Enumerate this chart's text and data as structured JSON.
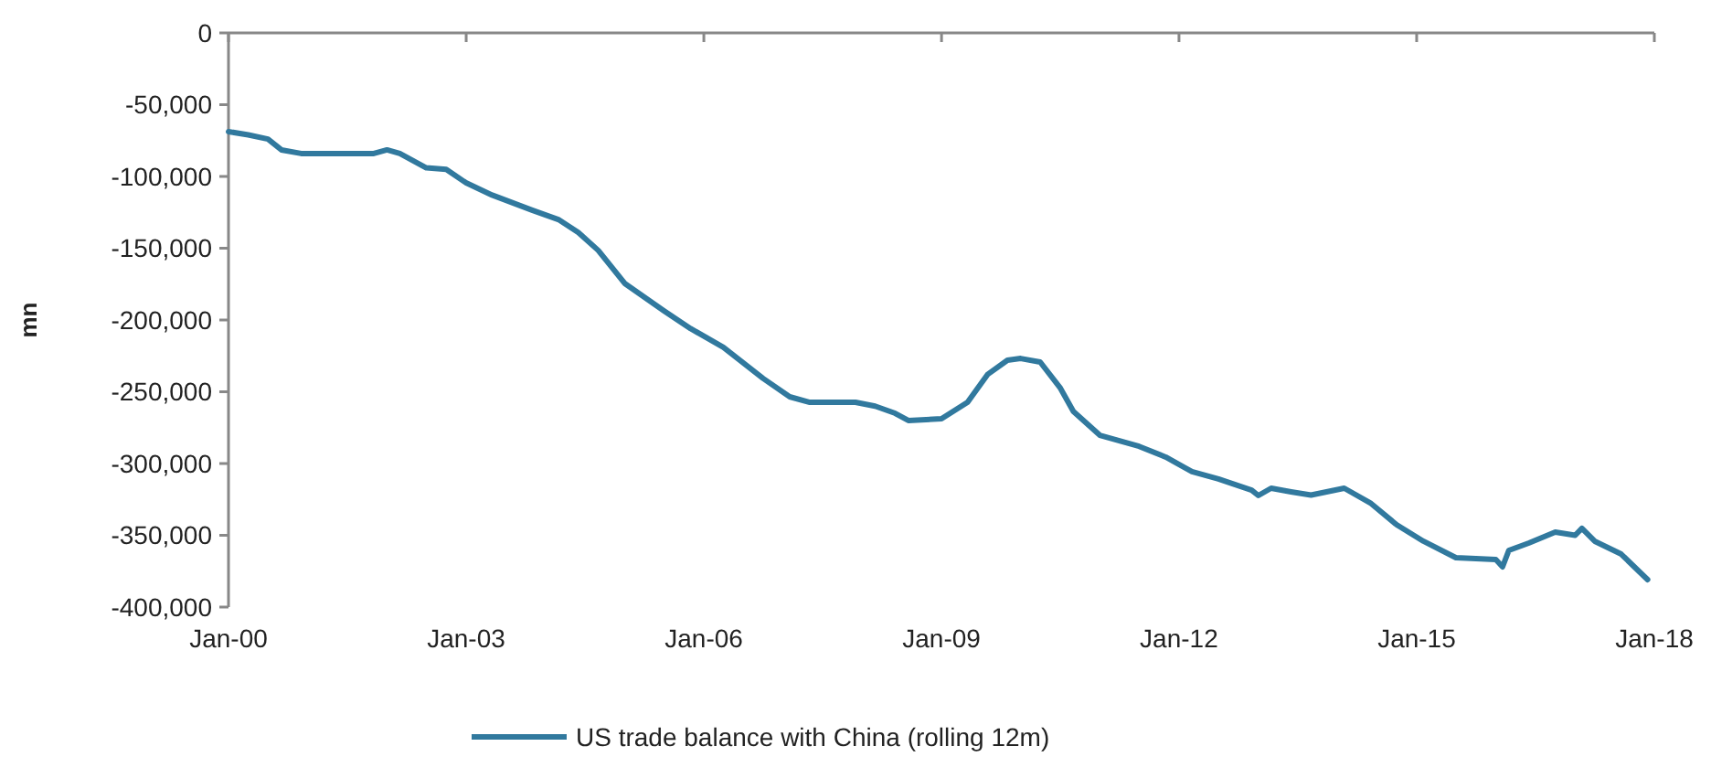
{
  "chart_data": {
    "type": "line",
    "ylabel": "mn",
    "legend": "bottom",
    "grid": false,
    "marker": "none",
    "line_style": "solid",
    "xlim": [
      "2000-01",
      "2018-01"
    ],
    "xticks": [
      {
        "value": "2000-01",
        "label": "Jan-00"
      },
      {
        "value": "2003-01",
        "label": "Jan-03"
      },
      {
        "value": "2006-01",
        "label": "Jan-06"
      },
      {
        "value": "2009-01",
        "label": "Jan-09"
      },
      {
        "value": "2012-01",
        "label": "Jan-12"
      },
      {
        "value": "2015-01",
        "label": "Jan-15"
      },
      {
        "value": "2018-01",
        "label": "Jan-18"
      }
    ],
    "ylim": [
      -400000,
      0
    ],
    "yticks": [
      {
        "value": -400000,
        "label": "-400,000"
      },
      {
        "value": -350000,
        "label": "-350,000"
      },
      {
        "value": -300000,
        "label": "-300,000"
      },
      {
        "value": -250000,
        "label": "-250,000"
      },
      {
        "value": -200000,
        "label": "-200,000"
      },
      {
        "value": -150000,
        "label": "-150,000"
      },
      {
        "value": -100000,
        "label": "-100,000"
      },
      {
        "value": -50000,
        "label": "-50,000"
      },
      0
    ],
    "series": [
      {
        "name": "US trade balance  with China (rolling 12m)",
        "color": "#31799e",
        "x": [
          "2000-01",
          "2000-04",
          "2000-07",
          "2000-09",
          "2000-12",
          "2001-11",
          "2002-01",
          "2002-03",
          "2002-07",
          "2002-10",
          "2003-01",
          "2003-05",
          "2003-11",
          "2004-03",
          "2004-06",
          "2004-09",
          "2005-01",
          "2005-07",
          "2005-11",
          "2006-04",
          "2006-10",
          "2007-02",
          "2007-05",
          "2007-12",
          "2008-03",
          "2008-06",
          "2008-08",
          "2009-01",
          "2009-05",
          "2009-08",
          "2009-11",
          "2010-01",
          "2010-04",
          "2010-07",
          "2010-09",
          "2011-01",
          "2011-07",
          "2011-11",
          "2012-03",
          "2012-07",
          "2012-12",
          "2013-01",
          "2013-03",
          "2013-06",
          "2013-09",
          "2014-02",
          "2014-06",
          "2014-10",
          "2015-02",
          "2015-07",
          "2016-01",
          "2016-02",
          "2016-03",
          "2016-06",
          "2016-10",
          "2017-01",
          "2017-02",
          "2017-04",
          "2017-08",
          "2017-12"
        ],
        "values": [
          -68800,
          -71000,
          -74000,
          -81500,
          -84000,
          -84000,
          -81500,
          -84000,
          -94000,
          -95000,
          -104500,
          -113000,
          -123500,
          -130000,
          -139000,
          -151500,
          -174500,
          -193600,
          -206000,
          -219000,
          -240700,
          -253500,
          -257300,
          -257300,
          -260000,
          -265000,
          -270000,
          -268800,
          -257300,
          -238000,
          -228000,
          -226800,
          -229300,
          -247000,
          -263700,
          -280300,
          -288000,
          -295500,
          -305700,
          -310800,
          -318500,
          -322300,
          -317200,
          -319700,
          -322000,
          -317200,
          -327400,
          -342700,
          -354100,
          -365600,
          -366900,
          -372000,
          -360500,
          -355400,
          -347800,
          -350000,
          -345200,
          -354100,
          -363100,
          -380900
        ]
      }
    ]
  }
}
